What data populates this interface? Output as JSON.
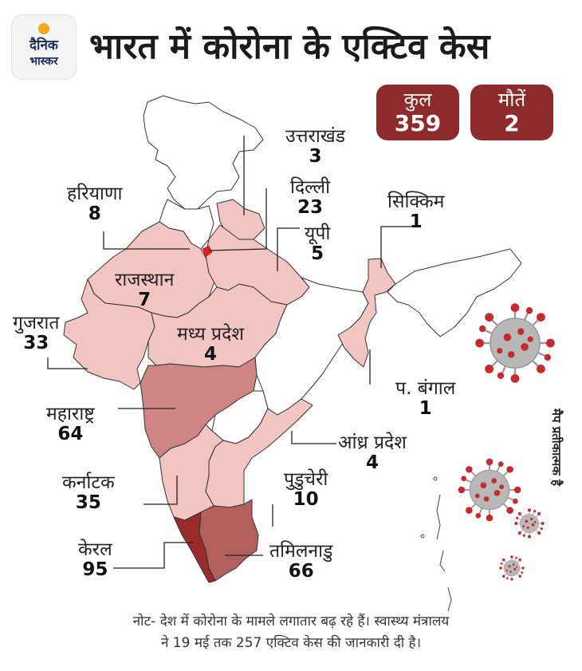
{
  "brand": {
    "line1": "दैनिक",
    "line2": "भास्कर"
  },
  "title": "भारत में कोरोना के एक्टिव केस",
  "stats": {
    "total": {
      "label": "कुल",
      "value": "359"
    },
    "deaths": {
      "label": "मौतें",
      "value": "2"
    }
  },
  "states": [
    {
      "name": "उत्तराखंड",
      "cases": "3"
    },
    {
      "name": "हरियाणा",
      "cases": "8"
    },
    {
      "name": "दिल्ली",
      "cases": "23"
    },
    {
      "name": "सिक्किम",
      "cases": "1"
    },
    {
      "name": "यूपी",
      "cases": "5"
    },
    {
      "name": "राजस्थान",
      "cases": "7"
    },
    {
      "name": "गुजरात",
      "cases": "33"
    },
    {
      "name": "मध्य प्रदेश",
      "cases": "4"
    },
    {
      "name": "प. बंगाल",
      "cases": "1"
    },
    {
      "name": "महाराष्ट्र",
      "cases": "64"
    },
    {
      "name": "आंध्र प्रदेश",
      "cases": "4"
    },
    {
      "name": "कर्नाटक",
      "cases": "35"
    },
    {
      "name": "पुडुचेरी",
      "cases": "10"
    },
    {
      "name": "केरल",
      "cases": "95"
    },
    {
      "name": "तमिलनाडु",
      "cases": "66"
    }
  ],
  "colors": {
    "light": "#f2c4c2",
    "medium": "#cf8583",
    "dark": "#b35f5d",
    "darkest": "#9b2a2a",
    "accent": "#8d2a2b",
    "delhi": "#e02020"
  },
  "side_note": "मैप प्रतीकात्मक है",
  "footnote": {
    "line1": "नोट- देश में कोरोना के मामले लगातार बढ़ रहे हैं। स्वास्थ्य मंत्रालय",
    "line2": "ने 19 मई तक 257 एक्टिव केस की जानकारी दी है।"
  }
}
